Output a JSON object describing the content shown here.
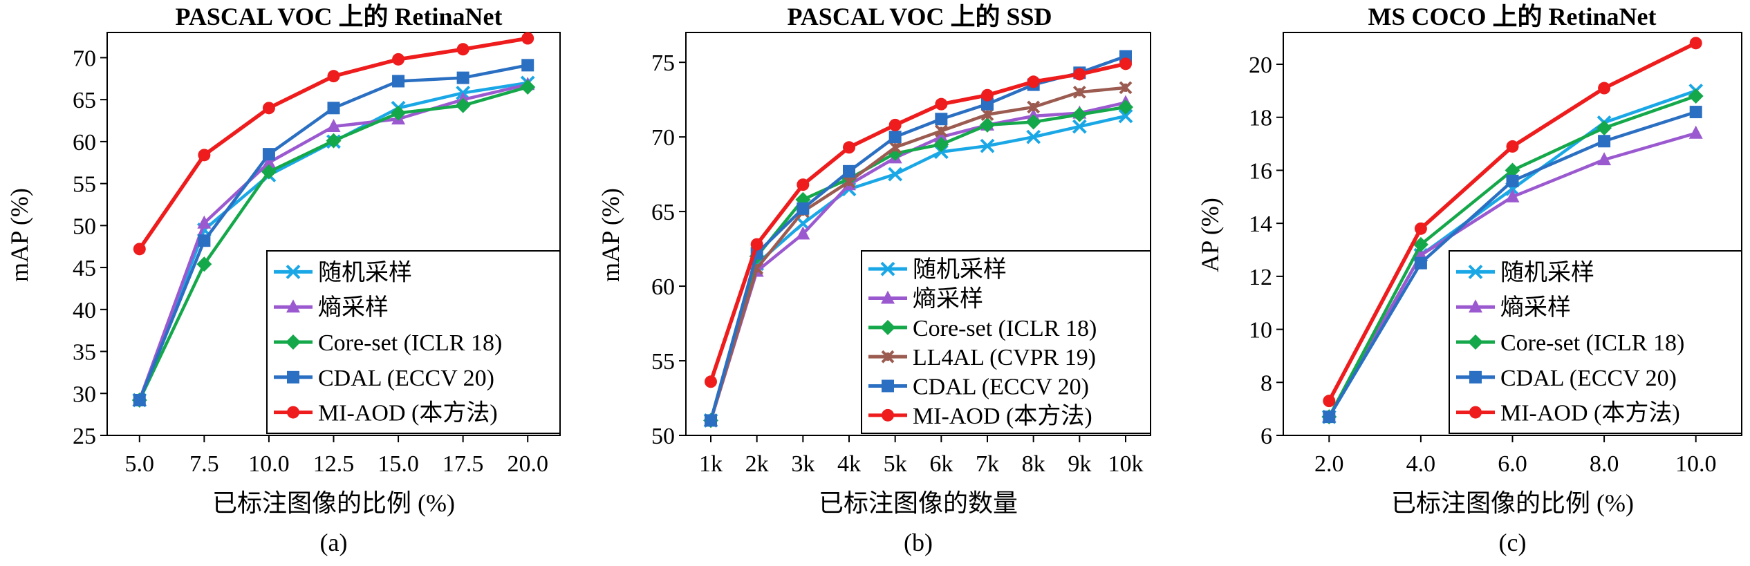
{
  "colors": {
    "random": "#1aa7e6",
    "entropy": "#9b59d0",
    "coreset": "#14a84a",
    "ll4al": "#9b5b50",
    "cdal": "#2a6fc2",
    "miaod": "#ee1c1c"
  },
  "chart_data": [
    {
      "type": "line",
      "title": "PASCAL VOC 上的 RetinaNet",
      "xlabel": "已标注图像的比例 (%)",
      "ylabel": "mAP (%)",
      "sublabel": "(a)",
      "x": [
        5.0,
        7.5,
        10.0,
        12.5,
        15.0,
        17.5,
        20.0
      ],
      "xticks": [
        "5.0",
        "7.5",
        "10.0",
        "12.5",
        "15.0",
        "17.5",
        "20.0"
      ],
      "ylim": [
        25,
        73
      ],
      "yticks": [
        "25",
        "30",
        "35",
        "40",
        "45",
        "50",
        "55",
        "60",
        "65",
        "70"
      ],
      "legend_position": "bottom-right",
      "series": [
        {
          "name": "随机采样",
          "key": "random",
          "marker": "x",
          "values": [
            29.2,
            49.5,
            56.0,
            60.0,
            64.0,
            65.8,
            67.0
          ]
        },
        {
          "name": "熵采样",
          "key": "entropy",
          "marker": "triangle",
          "values": [
            29.2,
            50.3,
            57.5,
            61.8,
            62.7,
            65.0,
            66.8
          ]
        },
        {
          "name": "Core-set (ICLR 18)",
          "key": "coreset",
          "marker": "diamond",
          "values": [
            29.2,
            45.4,
            56.4,
            60.1,
            63.4,
            64.3,
            66.5
          ]
        },
        {
          "name": "CDAL (ECCV 20)",
          "key": "cdal",
          "marker": "square",
          "values": [
            29.2,
            48.2,
            58.5,
            64.0,
            67.2,
            67.6,
            69.1
          ]
        },
        {
          "name": "MI-AOD (本方法)",
          "key": "miaod",
          "marker": "circle",
          "values": [
            47.2,
            58.4,
            64.0,
            67.8,
            69.8,
            71.0,
            72.3
          ]
        }
      ]
    },
    {
      "type": "line",
      "title": "PASCAL VOC 上的 SSD",
      "xlabel": "已标注图像的数量",
      "ylabel": "mAP (%)",
      "sublabel": "(b)",
      "x": [
        1,
        2,
        3,
        4,
        5,
        6,
        7,
        8,
        9,
        10
      ],
      "xticks": [
        "1k",
        "2k",
        "3k",
        "4k",
        "5k",
        "6k",
        "7k",
        "8k",
        "9k",
        "10k"
      ],
      "ylim": [
        50,
        77
      ],
      "yticks": [
        "50",
        "55",
        "60",
        "65",
        "70",
        "75"
      ],
      "legend_position": "bottom-right",
      "series": [
        {
          "name": "随机采样",
          "key": "random",
          "marker": "x",
          "values": [
            51.0,
            61.5,
            64.2,
            66.5,
            67.5,
            69.0,
            69.4,
            70.0,
            70.7,
            71.4
          ]
        },
        {
          "name": "熵采样",
          "key": "entropy",
          "marker": "triangle",
          "values": [
            51.0,
            61.0,
            63.5,
            66.8,
            68.6,
            70.0,
            70.8,
            71.4,
            71.6,
            72.3
          ]
        },
        {
          "name": "Core-set (ICLR 18)",
          "key": "coreset",
          "marker": "diamond",
          "values": [
            51.0,
            62.0,
            65.8,
            67.2,
            68.9,
            69.5,
            70.8,
            71.0,
            71.5,
            72.0
          ]
        },
        {
          "name": "LL4AL (CVPR 19)",
          "key": "ll4al",
          "marker": "xstar",
          "values": [
            51.0,
            61.2,
            65.0,
            67.0,
            69.3,
            70.4,
            71.5,
            72.0,
            73.0,
            73.3
          ]
        },
        {
          "name": "CDAL (ECCV 20)",
          "key": "cdal",
          "marker": "square",
          "values": [
            51.0,
            62.2,
            65.2,
            67.7,
            70.0,
            71.2,
            72.2,
            73.5,
            74.3,
            75.4
          ]
        },
        {
          "name": "MI-AOD (本方法)",
          "key": "miaod",
          "marker": "circle",
          "values": [
            53.6,
            62.8,
            66.8,
            69.3,
            70.8,
            72.2,
            72.8,
            73.7,
            74.2,
            74.9
          ]
        }
      ]
    },
    {
      "type": "line",
      "title": "MS COCO 上的 RetinaNet",
      "xlabel": "已标注图像的比例 (%)",
      "ylabel": "AP (%)",
      "sublabel": "(c)",
      "x": [
        2.0,
        4.0,
        6.0,
        8.0,
        10.0
      ],
      "xticks": [
        "2.0",
        "4.0",
        "6.0",
        "8.0",
        "10.0"
      ],
      "ylim": [
        6,
        21.2
      ],
      "yticks": [
        "6",
        "8",
        "10",
        "12",
        "14",
        "16",
        "18",
        "20"
      ],
      "legend_position": "bottom-right",
      "series": [
        {
          "name": "随机采样",
          "key": "random",
          "marker": "x",
          "values": [
            6.7,
            12.8,
            15.3,
            17.8,
            19.0
          ]
        },
        {
          "name": "熵采样",
          "key": "entropy",
          "marker": "triangle",
          "values": [
            6.7,
            12.8,
            15.0,
            16.4,
            17.4
          ]
        },
        {
          "name": "Core-set (ICLR 18)",
          "key": "coreset",
          "marker": "diamond",
          "values": [
            6.7,
            13.2,
            16.0,
            17.6,
            18.8
          ]
        },
        {
          "name": "CDAL (ECCV 20)",
          "key": "cdal",
          "marker": "square",
          "values": [
            6.7,
            12.5,
            15.6,
            17.1,
            18.2
          ]
        },
        {
          "name": "MI-AOD (本方法)",
          "key": "miaod",
          "marker": "circle",
          "values": [
            7.3,
            13.8,
            16.9,
            19.1,
            20.8
          ]
        }
      ]
    }
  ]
}
